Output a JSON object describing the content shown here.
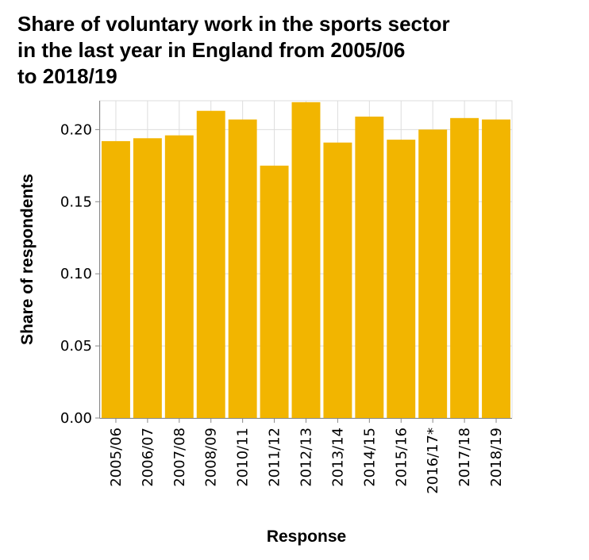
{
  "chart_data": {
    "type": "bar",
    "title_lines": [
      "Share of voluntary work in the sports sector",
      "in the last year in England from 2005/06",
      "to 2018/19"
    ],
    "xlabel": "Response",
    "ylabel": "Share of respondents",
    "categories": [
      "2005/06",
      "2006/07",
      "2007/08",
      "2008/09",
      "2010/11",
      "2011/12",
      "2012/13",
      "2013/14",
      "2014/15",
      "2015/16",
      "2016/17*",
      "2017/18",
      "2018/19"
    ],
    "values": [
      0.192,
      0.194,
      0.196,
      0.213,
      0.207,
      0.175,
      0.219,
      0.191,
      0.209,
      0.193,
      0.2,
      0.208,
      0.207
    ],
    "ylim": [
      0,
      0.22
    ],
    "yticks": [
      0.0,
      0.05,
      0.1,
      0.15,
      0.2
    ],
    "ytick_labels": [
      "0.00",
      "0.05",
      "0.10",
      "0.15",
      "0.20"
    ],
    "grid": true,
    "bar_color": "#f2b500",
    "grid_color": "#dddddd"
  }
}
